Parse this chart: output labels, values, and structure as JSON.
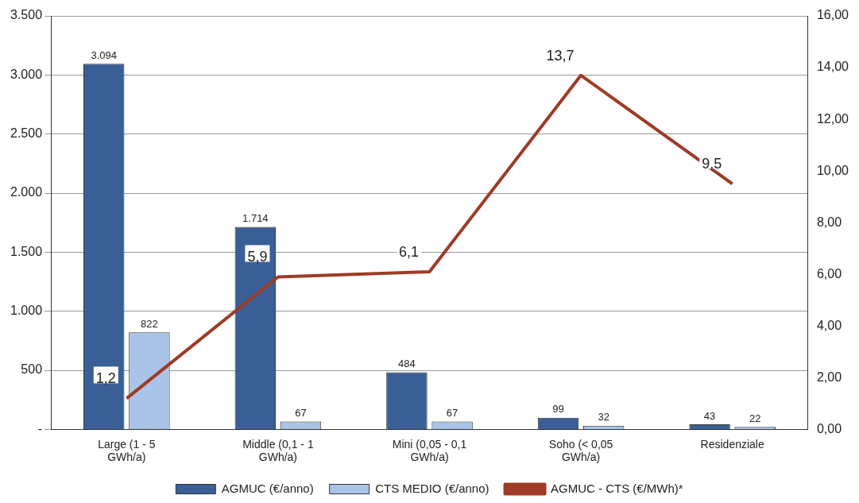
{
  "chart_data": {
    "type": "bar",
    "categories": [
      "Large (1 - 5 GWh/a)",
      "Middle (0,1 - 1 GWh/a)",
      "Mini (0,05 - 0,1 GWh/a)",
      "Soho (< 0,05 GWh/a)",
      "Residenziale"
    ],
    "series": [
      {
        "name": "AGMUC (€/anno)",
        "color": "#3a5f96",
        "values": [
          3094,
          1714,
          484,
          99,
          43
        ],
        "value_labels": [
          "3.094",
          "1.714",
          "484",
          "99",
          "43"
        ]
      },
      {
        "name": "CTS MEDIO (€/anno)",
        "color": "#a9c4e6",
        "values": [
          822,
          67,
          67,
          32,
          22
        ],
        "value_labels": [
          "822",
          "67",
          "67",
          "32",
          "22"
        ]
      },
      {
        "name": "AGMUC - CTS (€/MWh)*",
        "type": "line",
        "axis": "y2",
        "color": "#9e3b26",
        "values": [
          1.2,
          5.9,
          6.1,
          13.7,
          9.5
        ],
        "value_labels": [
          "1,2",
          "5,9",
          "6,1",
          "13,7",
          "9,5"
        ]
      }
    ],
    "ylim": [
      0,
      3500
    ],
    "yticks": [
      {
        "value": 0,
        "label": "-"
      },
      500,
      {
        "value": 1000,
        "label": "1.000"
      },
      {
        "value": 1500,
        "label": "1.500"
      },
      {
        "value": 2000,
        "label": "2.000"
      },
      {
        "value": 2500,
        "label": "2.500"
      },
      {
        "value": 3000,
        "label": "3.000"
      },
      {
        "value": 3500,
        "label": "3.500"
      }
    ],
    "y2lim": [
      0,
      16
    ],
    "y2ticks": [
      {
        "value": 0,
        "label": "0,00"
      },
      {
        "value": 2,
        "label": "2,00"
      },
      {
        "value": 4,
        "label": "4,00"
      },
      {
        "value": 6,
        "label": "6,00"
      },
      {
        "value": 8,
        "label": "8,00"
      },
      {
        "value": 10,
        "label": "10,00"
      },
      {
        "value": 12,
        "label": "12,00"
      },
      {
        "value": 14,
        "label": "14,00"
      },
      {
        "value": 16,
        "label": "16,00"
      }
    ],
    "grid": "y",
    "legend": "bottom",
    "marker": "none",
    "line_style": "solid"
  }
}
